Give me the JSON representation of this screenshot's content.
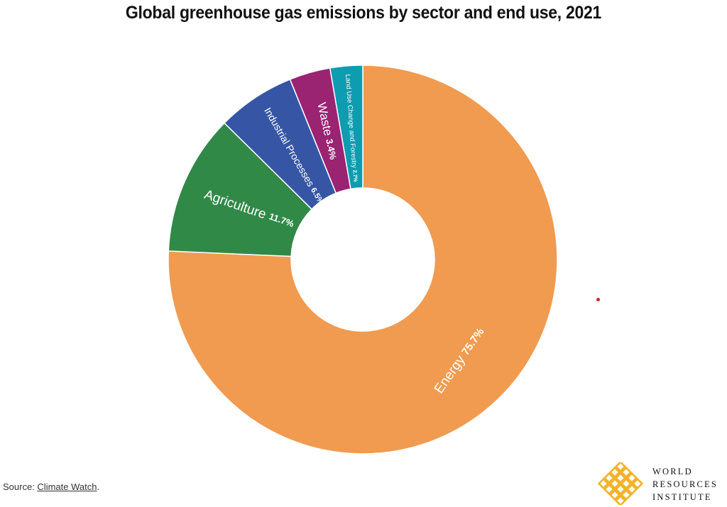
{
  "chart_data": {
    "type": "pie",
    "title": "Global greenhouse gas emissions by sector and end use, 2021",
    "unit": "%",
    "slices": [
      {
        "name": "Energy",
        "value": 75.7,
        "value_label": "75.7%",
        "color": "#F09B50"
      },
      {
        "name": "Agriculture",
        "value": 11.7,
        "value_label": "11.7%",
        "color": "#318948"
      },
      {
        "name": "Industrial Processes",
        "value": 6.5,
        "value_label": "6.5%",
        "color": "#3656A5"
      },
      {
        "name": "Waste",
        "value": 3.4,
        "value_label": "3.4%",
        "color": "#9A2372"
      },
      {
        "name": "Land Use Change and Forestry",
        "value": 2.7,
        "value_label": "2.7%",
        "color": "#0E9CB0"
      }
    ],
    "slice_order": "clockwise from top, starting with Energy"
  },
  "footer": {
    "source_prefix": "Source: ",
    "source_link": "Climate Watch",
    "source_suffix": "."
  },
  "logo": {
    "line1": "WORLD",
    "line2": "RESOURCES",
    "line3": "INSTITUTE",
    "icon": "wri-woven-diamond-icon",
    "color": "#F2B32A"
  },
  "colors": {
    "marker_dot": "#D62828"
  }
}
